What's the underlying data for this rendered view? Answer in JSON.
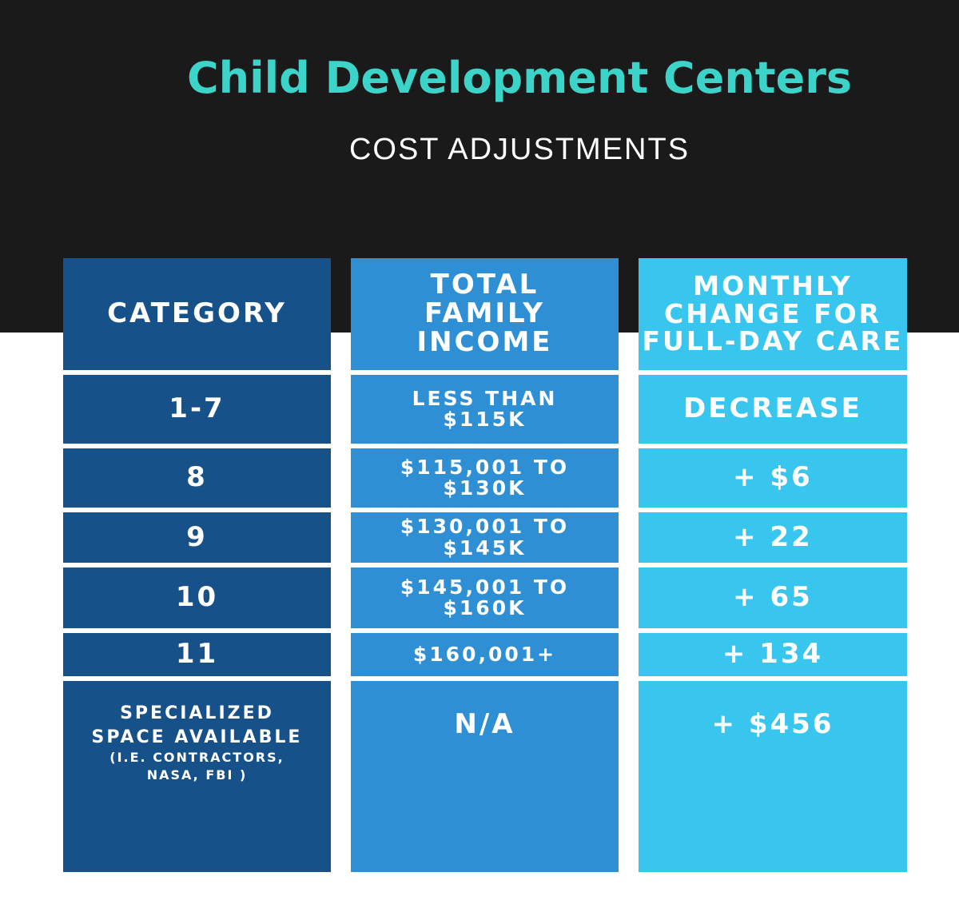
{
  "title": "Child Development Centers",
  "subtitle": "COST ADJUSTMENTS",
  "colors": {
    "background_top": "#1a1a1a",
    "title": "#3cd3c9",
    "col1": "#175189",
    "col2": "#2e8fd5",
    "col3": "#38c6ef"
  },
  "headers": {
    "category": "CATEGORY",
    "income_l1": "TOTAL",
    "income_l2": "FAMILY",
    "income_l3": "INCOME",
    "change_l1": "MONTHLY",
    "change_l2": "CHANGE FOR",
    "change_l3": "FULL-DAY CARE"
  },
  "rows": [
    {
      "category": "1-7",
      "income_l1": "LESS THAN",
      "income_l2": "$115K",
      "change": "DECREASE"
    },
    {
      "category": "8",
      "income_l1": "$115,001 TO",
      "income_l2": "$130K",
      "change": "+ $6"
    },
    {
      "category": "9",
      "income_l1": "$130,001 TO",
      "income_l2": "$145K",
      "change": "+ 22"
    },
    {
      "category": "10",
      "income_l1": "$145,001 TO",
      "income_l2": "$160K",
      "change": "+ 65"
    },
    {
      "category": "11",
      "income_l1": "$160,001+",
      "change": "+ 134"
    },
    {
      "category_l1": "SPECIALIZED",
      "category_l2": "SPACE AVAILABLE",
      "category_note_l1": "(I.E. CONTRACTORS,",
      "category_note_l2": "NASA, FBI )",
      "income": "N/A",
      "change": "+ $456"
    }
  ]
}
